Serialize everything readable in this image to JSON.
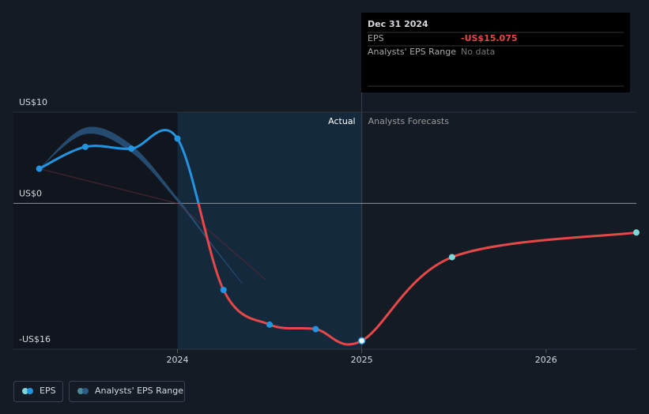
{
  "chart_data": {
    "type": "line",
    "tooltip": {
      "date": "Dec 31 2024",
      "rows": [
        {
          "label": "EPS",
          "value": "-US$15.075"
        },
        {
          "label": "Analysts' EPS Range",
          "value": "No data"
        }
      ]
    },
    "region_labels": {
      "actual": "Actual",
      "forecast": "Analysts Forecasts"
    },
    "x": [
      2023.25,
      2023.5,
      2023.75,
      2024.0,
      2024.25,
      2024.5,
      2024.75,
      2025.0,
      2025.49,
      2026.49
    ],
    "series": [
      {
        "name": "EPS",
        "color": "#2394df",
        "negative_color": "#e64848",
        "forecast_color": "#7fd6d6",
        "values": [
          3.8,
          6.2,
          6.0,
          7.1,
          -9.5,
          -13.3,
          -13.8,
          -15.075,
          -5.9,
          -3.2
        ]
      }
    ],
    "range": {
      "name": "Analysts' EPS Range",
      "color": "#2b5a84",
      "x": [
        2023.25,
        2023.5,
        2023.75,
        2024.0,
        2024.2,
        2024.35
      ],
      "low": [
        3.8,
        7.6,
        5.6,
        0.2,
        -5.0,
        -8.8
      ],
      "high": [
        3.8,
        8.3,
        6.4,
        0.6,
        -4.8,
        -8.7
      ]
    },
    "forecast_start": 2025.0,
    "xlim": [
      2023.11,
      2026.49
    ],
    "xticks": [
      2024,
      2025,
      2026
    ],
    "ylim": [
      -16,
      10
    ],
    "yticks": [
      {
        "value": 10,
        "label": "US$10"
      },
      {
        "value": 0,
        "label": "US$0"
      },
      {
        "value": -16,
        "label": "-US$16"
      }
    ]
  }
}
